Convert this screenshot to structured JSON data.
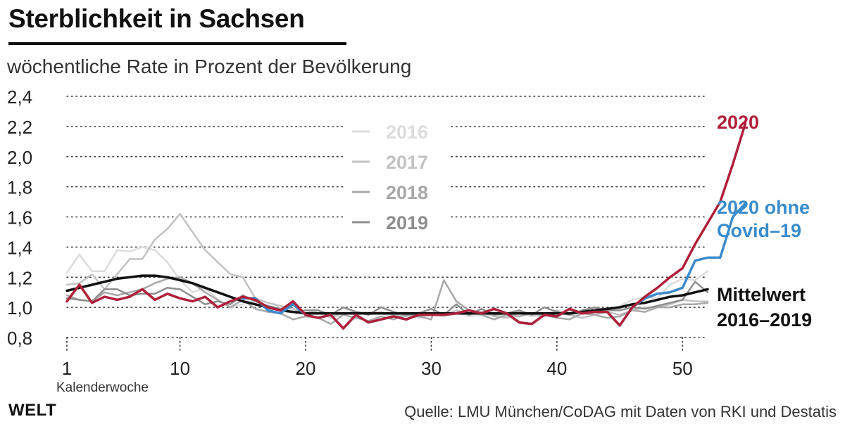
{
  "header": {
    "title": "Sterblichkeit in Sachsen",
    "subtitle": "wöchentliche Rate in Prozent der Bevölkerung"
  },
  "footer": {
    "brand": "WELT",
    "source": "Quelle: LMU München/CoDAG mit Daten von RKI und Destatis"
  },
  "colors": {
    "2016": "#dcdcdc",
    "2017": "#c2c2c2",
    "2018": "#a8a8a8",
    "2019": "#8e8e8e",
    "mittelwert": "#111111",
    "2020": "#b0203a",
    "2020_ohne": "#3a8ccc",
    "grid": "#333333"
  },
  "chart_data": {
    "type": "line",
    "title": "Sterblichkeit in Sachsen",
    "ylabel": "wöchentliche Rate in Prozent der Bevölkerung",
    "xlabel": "Kalenderwoche",
    "xlim": [
      1,
      52
    ],
    "ylim": [
      0.8,
      2.4
    ],
    "grid": true,
    "xticks": [
      1,
      10,
      20,
      30,
      40,
      50
    ],
    "xtick_labels": [
      "1",
      "10",
      "20",
      "30",
      "40",
      "50"
    ],
    "yticks": [
      0.8,
      1.0,
      1.2,
      1.4,
      1.6,
      1.8,
      2.0,
      2.2,
      2.4
    ],
    "ytick_labels": [
      "0,8",
      "1,0",
      "1,2",
      "1,4",
      "1,6",
      "1,8",
      "2,0",
      "2,2",
      "2,4"
    ],
    "legend": [
      "2016",
      "2017",
      "2018",
      "2019"
    ],
    "series": [
      {
        "name": "2016",
        "key": "2016",
        "x_start": 1,
        "values": [
          1.23,
          1.35,
          1.24,
          1.24,
          1.38,
          1.37,
          1.4,
          1.38,
          1.3,
          1.18,
          1.1,
          1.13,
          1.05,
          1.0,
          1.02,
          1.05,
          0.98,
          1.0,
          0.99,
          0.96,
          0.98,
          0.93,
          0.95,
          0.97,
          0.97,
          0.96,
          0.94,
          0.96,
          0.93,
          0.95,
          0.94,
          0.96,
          0.94,
          0.95,
          0.95,
          0.94,
          0.96,
          0.94,
          0.96,
          0.97,
          0.95,
          0.96,
          0.97,
          0.98,
          1.01,
          1.05,
          1.07,
          1.06,
          1.15,
          1.19,
          1.18,
          1.24
        ]
      },
      {
        "name": "2017",
        "key": "2017",
        "x_start": 1,
        "values": [
          1.15,
          1.16,
          1.22,
          1.12,
          1.22,
          1.32,
          1.32,
          1.45,
          1.52,
          1.62,
          1.5,
          1.38,
          1.3,
          1.22,
          1.2,
          1.06,
          1.03,
          1.01,
          0.99,
          0.96,
          0.98,
          0.94,
          0.96,
          0.97,
          0.95,
          0.97,
          0.95,
          0.94,
          0.96,
          0.95,
          0.95,
          0.98,
          0.95,
          0.97,
          0.94,
          0.93,
          0.97,
          0.95,
          0.94,
          0.98,
          0.95,
          0.93,
          0.95,
          0.97,
          0.95,
          0.98,
          1.0,
          1.0,
          1.02,
          1.05,
          1.04,
          1.04
        ]
      },
      {
        "name": "2018",
        "key": "2018",
        "x_start": 1,
        "values": [
          1.08,
          1.05,
          1.04,
          1.1,
          1.08,
          1.1,
          1.12,
          1.16,
          1.19,
          1.2,
          1.16,
          1.1,
          1.05,
          1.0,
          1.05,
          0.99,
          0.97,
          0.96,
          0.92,
          0.94,
          0.93,
          0.89,
          0.95,
          0.93,
          0.91,
          0.94,
          0.92,
          0.95,
          0.94,
          0.92,
          1.18,
          1.04,
          0.98,
          0.95,
          0.92,
          0.95,
          0.94,
          0.96,
          0.95,
          0.93,
          0.92,
          0.96,
          0.95,
          0.93,
          0.94,
          0.98,
          0.97,
          1.0,
          1.0,
          1.02,
          1.02,
          1.03
        ]
      },
      {
        "name": "2019",
        "key": "2019",
        "x_start": 1,
        "values": [
          1.06,
          1.05,
          1.04,
          1.12,
          1.12,
          1.08,
          1.09,
          1.09,
          1.13,
          1.12,
          1.07,
          1.02,
          1.04,
          1.02,
          1.08,
          1.04,
          1.01,
          0.99,
          0.97,
          0.98,
          0.98,
          0.95,
          1.0,
          0.97,
          0.95,
          1.0,
          0.97,
          0.95,
          0.96,
          0.99,
          0.95,
          1.02,
          0.95,
          0.99,
          0.95,
          0.96,
          0.98,
          0.95,
          1.0,
          0.97,
          0.95,
          0.98,
          1.0,
          0.98,
          0.98,
          1.0,
          0.99,
          1.01,
          1.03,
          1.05,
          1.17,
          1.1
        ]
      },
      {
        "name": "Mittelwert 2016–2019",
        "key": "mittelwert",
        "x_start": 1,
        "values": [
          1.11,
          1.13,
          1.15,
          1.17,
          1.19,
          1.2,
          1.21,
          1.21,
          1.2,
          1.18,
          1.16,
          1.13,
          1.1,
          1.07,
          1.04,
          1.02,
          1.0,
          0.98,
          0.97,
          0.96,
          0.96,
          0.96,
          0.96,
          0.96,
          0.96,
          0.96,
          0.96,
          0.96,
          0.96,
          0.96,
          0.96,
          0.96,
          0.96,
          0.96,
          0.96,
          0.96,
          0.96,
          0.96,
          0.96,
          0.96,
          0.96,
          0.97,
          0.98,
          0.99,
          1.0,
          1.02,
          1.03,
          1.05,
          1.07,
          1.08,
          1.1,
          1.12
        ]
      },
      {
        "name": "2020 ohne Covid–19",
        "key": "2020_ohne",
        "x_start": 15,
        "values": [
          1.06,
          1.06,
          0.98,
          0.96,
          1.02,
          0.95,
          0.93,
          0.95,
          0.86,
          0.95,
          0.9,
          0.92,
          0.94,
          0.92,
          0.95,
          0.95,
          0.95,
          0.96,
          0.98,
          0.96,
          0.99,
          0.96,
          0.9,
          0.89,
          0.95,
          0.94,
          0.99,
          0.96,
          0.97,
          0.97,
          0.88,
          1.0,
          1.06,
          1.09,
          1.1,
          1.13,
          1.31,
          1.33,
          1.33,
          1.6,
          1.69
        ]
      },
      {
        "name": "2020",
        "key": "2020",
        "x_start": 1,
        "values": [
          1.04,
          1.15,
          1.03,
          1.07,
          1.05,
          1.07,
          1.12,
          1.05,
          1.09,
          1.06,
          1.04,
          1.07,
          1.0,
          1.04,
          1.07,
          1.05,
          1.0,
          0.98,
          1.04,
          0.95,
          0.93,
          0.95,
          0.86,
          0.95,
          0.9,
          0.92,
          0.94,
          0.92,
          0.95,
          0.95,
          0.95,
          0.96,
          0.98,
          0.96,
          0.99,
          0.96,
          0.9,
          0.89,
          0.95,
          0.94,
          0.99,
          0.96,
          0.97,
          0.97,
          0.88,
          1.0,
          1.07,
          1.13,
          1.2,
          1.26,
          1.42,
          1.56,
          1.7,
          1.95,
          2.22
        ]
      },
      {
        "name": "2020",
        "key": "2020",
        "x_start": 1,
        "values": [
          1.04,
          1.15,
          1.03,
          1.07,
          1.05,
          1.07,
          1.12,
          1.05,
          1.09,
          1.06,
          1.04,
          1.07,
          1.0,
          1.04,
          1.07,
          1.05,
          1.0,
          0.98,
          1.04,
          0.95,
          0.93,
          0.95,
          0.86,
          0.95,
          0.9,
          0.92,
          0.94,
          0.92,
          0.95,
          0.95,
          0.95,
          0.96,
          0.98,
          0.96,
          0.99,
          0.96,
          0.9,
          0.89,
          0.95,
          0.94,
          0.99,
          0.96,
          0.97,
          0.97,
          0.88,
          1.0,
          1.07,
          1.13,
          1.2,
          1.26,
          1.42,
          1.56,
          1.7,
          1.95,
          2.22
        ]
      }
    ],
    "annotations": {
      "label_2020": "2020",
      "label_2020_ohne_1": "2020 ohne",
      "label_2020_ohne_2": "Covid–19",
      "label_mittelwert_1": "Mittelwert",
      "label_mittelwert_2": "2016–2019"
    }
  }
}
